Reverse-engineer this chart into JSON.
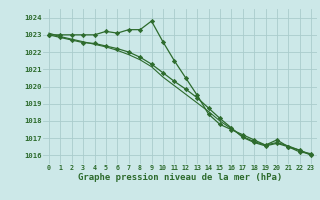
{
  "hours": [
    0,
    1,
    2,
    3,
    4,
    5,
    6,
    7,
    8,
    9,
    10,
    11,
    12,
    13,
    14,
    15,
    16,
    17,
    18,
    19,
    20,
    21,
    22,
    23
  ],
  "line1": [
    1023.0,
    1023.0,
    1023.0,
    1023.0,
    1023.0,
    1023.2,
    1023.1,
    1023.3,
    1023.3,
    1023.8,
    1022.6,
    1021.5,
    1020.5,
    1019.5,
    1018.4,
    1017.8,
    1017.5,
    1017.2,
    1016.9,
    1016.6,
    1016.9,
    1016.5,
    1016.2,
    1016.1
  ],
  "line2": [
    1023.0,
    1022.85,
    1022.7,
    1022.55,
    1022.5,
    1022.35,
    1022.2,
    1022.0,
    1021.7,
    1021.3,
    1020.8,
    1020.3,
    1019.85,
    1019.35,
    1018.75,
    1018.15,
    1017.6,
    1017.05,
    1016.75,
    1016.55,
    1016.7,
    1016.5,
    1016.3,
    1016.05
  ],
  "line3": [
    1023.1,
    1022.9,
    1022.75,
    1022.6,
    1022.45,
    1022.3,
    1022.1,
    1021.85,
    1021.55,
    1021.15,
    1020.55,
    1020.05,
    1019.55,
    1019.05,
    1018.55,
    1018.0,
    1017.55,
    1017.1,
    1016.8,
    1016.6,
    1016.75,
    1016.55,
    1016.3,
    1016.0
  ],
  "bg_color": "#cce8e8",
  "grid_color": "#aacccc",
  "line_color": "#2d6b2d",
  "ylabel_ticks": [
    1016,
    1017,
    1018,
    1019,
    1020,
    1021,
    1022,
    1023,
    1024
  ],
  "xlabel": "Graphe pression niveau de la mer (hPa)",
  "ylim": [
    1015.5,
    1024.5
  ],
  "xlim": [
    -0.5,
    23.5
  ]
}
